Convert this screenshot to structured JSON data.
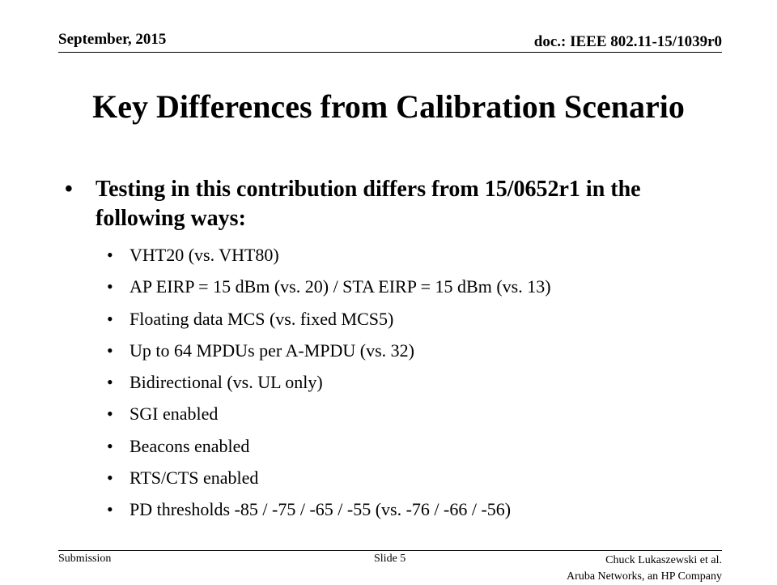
{
  "header": {
    "date": "September, 2015",
    "doc_id": "doc.: IEEE 802.11-15/1039r0"
  },
  "slide": {
    "title": "Key Differences from Calibration Scenario",
    "main_bullet": "Testing in this contribution differs from 15/0652r1 in the following ways:",
    "sub_bullets": [
      "VHT20 (vs. VHT80)",
      "AP EIRP = 15 dBm (vs. 20) / STA EIRP = 15 dBm (vs. 13)",
      "Floating data MCS (vs. fixed MCS5)",
      "Up to 64 MPDUs per A-MPDU (vs. 32)",
      "Bidirectional (vs. UL only)",
      "SGI enabled",
      "Beacons enabled",
      "RTS/CTS enabled",
      "PD thresholds -85 / -75 / -65 / -55  (vs. -76 / -66 / -56)"
    ]
  },
  "footer": {
    "left": "Submission",
    "center": "Slide 5",
    "right_line1": "Chuck Lukaszewski et al.",
    "right_line2": "Aruba Networks, an HP Company"
  }
}
